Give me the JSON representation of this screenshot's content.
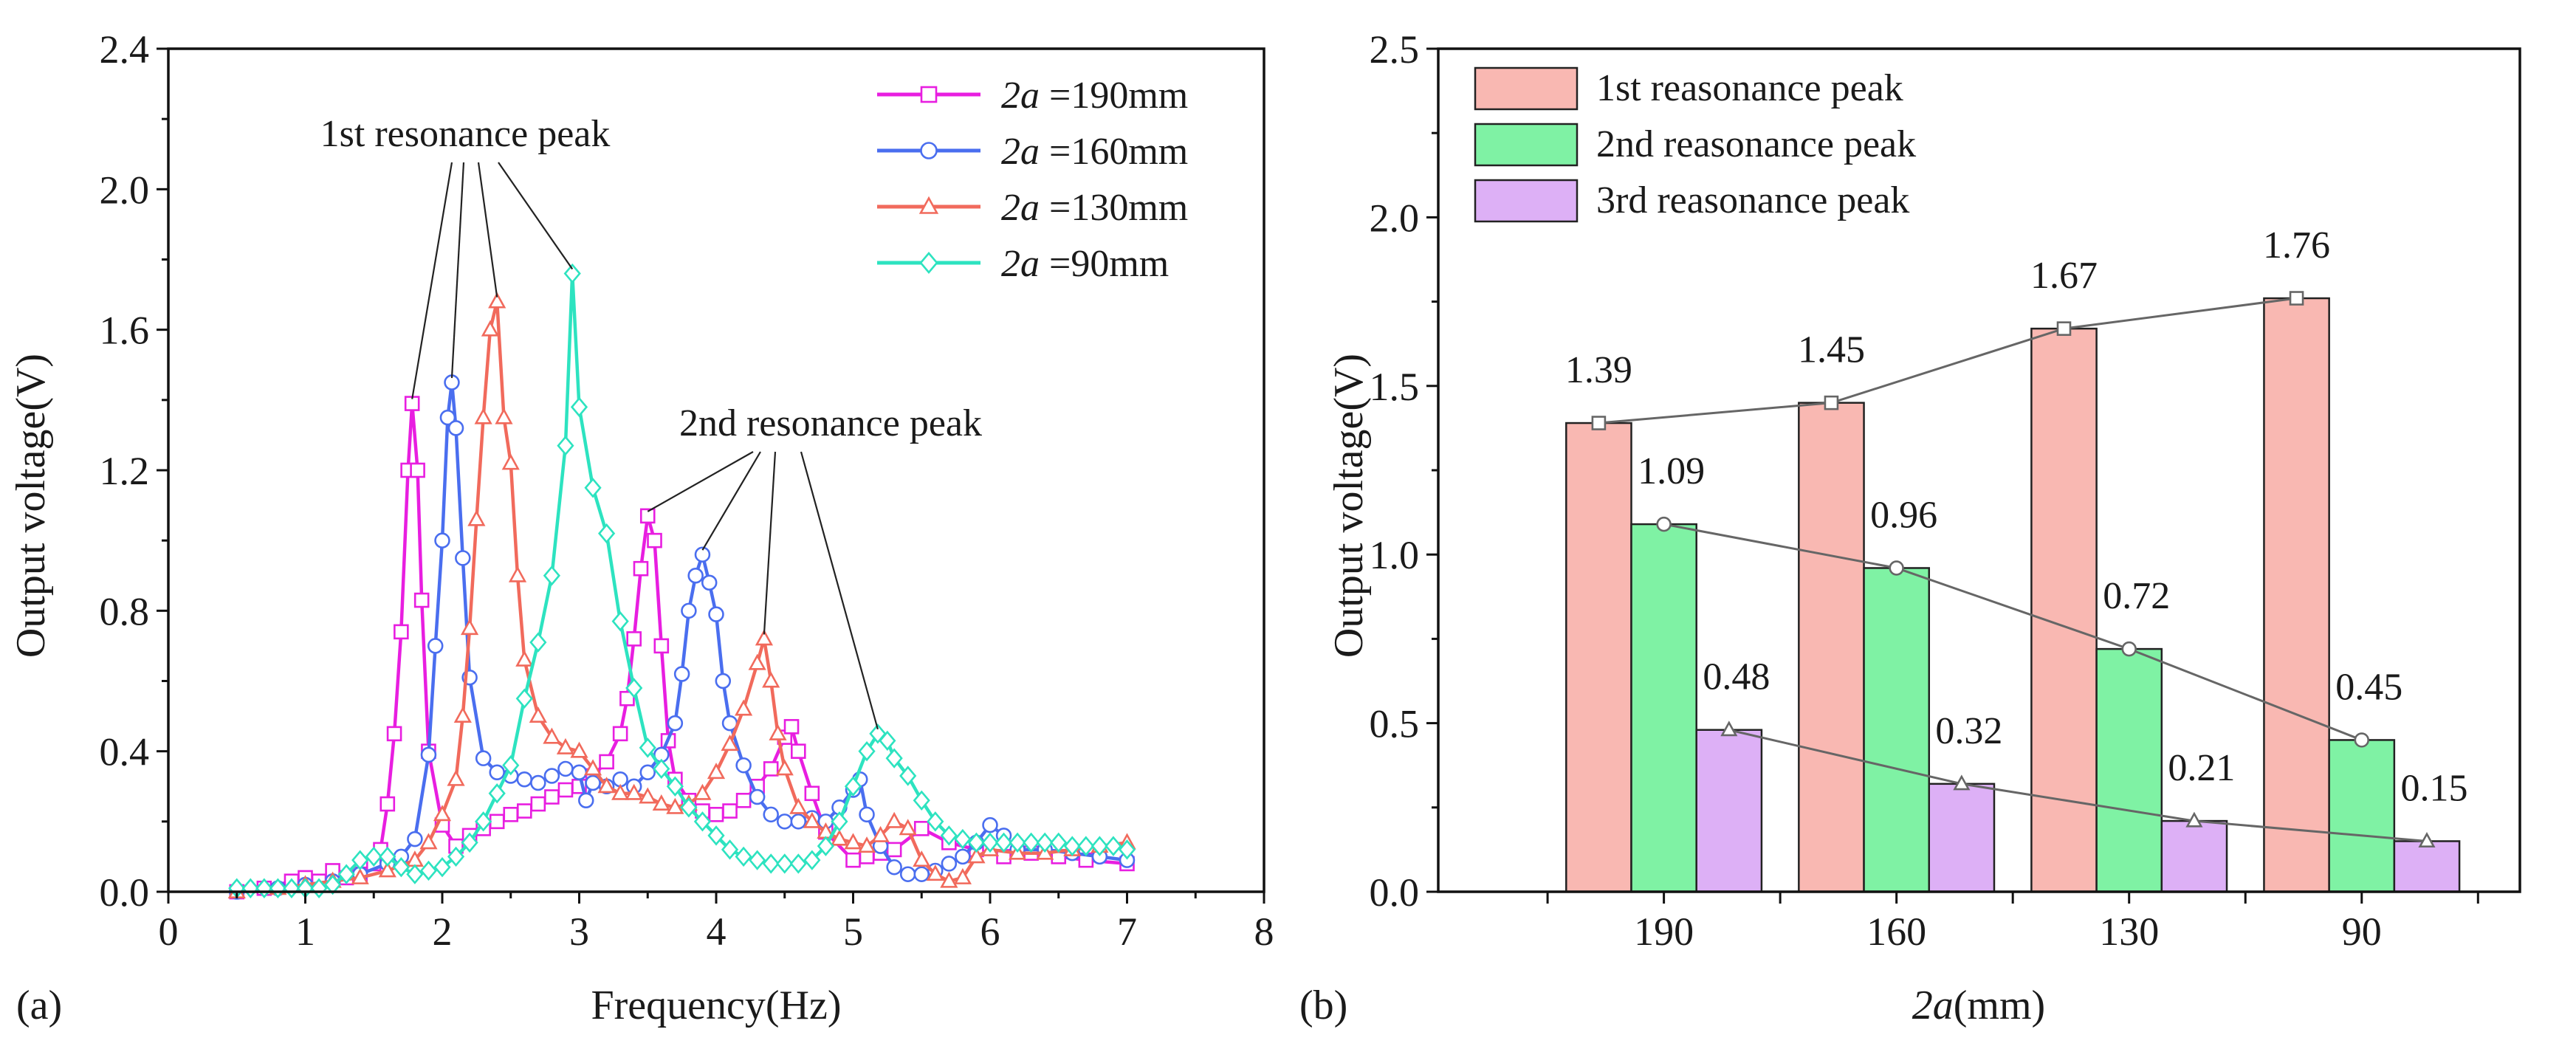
{
  "chart_data": [
    {
      "type": "line",
      "panel_label": "(a)",
      "xlabel": "Frequency(Hz)",
      "ylabel": "Output voltage(V)",
      "xlim": [
        0,
        8
      ],
      "ylim": [
        0,
        2.4
      ],
      "x_ticks": [
        "0",
        "1",
        "2",
        "3",
        "4",
        "5",
        "6",
        "7",
        "8"
      ],
      "y_ticks": [
        "0.0",
        "0.4",
        "0.8",
        "1.2",
        "1.6",
        "2.0",
        "2.4"
      ],
      "legend_position": "top-right",
      "legend_prefix": "2a",
      "annotations": [
        {
          "text": "1st resonance peak",
          "targets": [
            [
              1.78,
              1.39
            ],
            [
              2.07,
              1.45
            ],
            [
              2.4,
              1.68
            ],
            [
              2.95,
              1.76
            ]
          ]
        },
        {
          "text": "2nd resonance peak",
          "targets": [
            [
              3.5,
              1.07
            ],
            [
              3.9,
              0.96
            ],
            [
              4.35,
              0.72
            ],
            [
              5.18,
              0.45
            ]
          ]
        }
      ],
      "series": [
        {
          "name": "=190mm",
          "color": "#e81ee0",
          "marker": "square",
          "x": [
            0.5,
            0.7,
            0.9,
            1.0,
            1.1,
            1.2,
            1.3,
            1.4,
            1.5,
            1.55,
            1.6,
            1.65,
            1.7,
            1.75,
            1.78,
            1.82,
            1.85,
            1.9,
            2.0,
            2.1,
            2.2,
            2.3,
            2.4,
            2.5,
            2.6,
            2.7,
            2.8,
            2.9,
            3.0,
            3.1,
            3.2,
            3.3,
            3.35,
            3.4,
            3.45,
            3.5,
            3.55,
            3.6,
            3.65,
            3.7,
            3.8,
            3.9,
            4.0,
            4.1,
            4.2,
            4.3,
            4.4,
            4.5,
            4.55,
            4.6,
            4.7,
            4.8,
            5.0,
            5.1,
            5.2,
            5.3,
            5.5,
            5.7,
            5.9,
            6.1,
            6.3,
            6.5,
            6.7,
            7.0
          ],
          "y": [
            0.0,
            0.01,
            0.03,
            0.04,
            0.03,
            0.06,
            0.04,
            0.05,
            0.08,
            0.12,
            0.25,
            0.45,
            0.74,
            1.2,
            1.39,
            1.2,
            0.83,
            0.4,
            0.19,
            0.13,
            0.16,
            0.18,
            0.2,
            0.22,
            0.23,
            0.25,
            0.27,
            0.29,
            0.3,
            0.33,
            0.37,
            0.45,
            0.55,
            0.72,
            0.92,
            1.07,
            1.0,
            0.7,
            0.43,
            0.32,
            0.26,
            0.23,
            0.22,
            0.23,
            0.26,
            0.3,
            0.35,
            0.44,
            0.47,
            0.4,
            0.28,
            0.17,
            0.09,
            0.1,
            0.11,
            0.12,
            0.18,
            0.14,
            0.12,
            0.1,
            0.11,
            0.1,
            0.09,
            0.08
          ]
        },
        {
          "name": "=160mm",
          "color": "#4a6eef",
          "marker": "circle",
          "x": [
            0.5,
            0.8,
            1.0,
            1.2,
            1.4,
            1.6,
            1.7,
            1.8,
            1.9,
            1.95,
            2.0,
            2.04,
            2.07,
            2.1,
            2.15,
            2.2,
            2.3,
            2.4,
            2.5,
            2.6,
            2.7,
            2.8,
            2.9,
            3.0,
            3.05,
            3.1,
            3.2,
            3.3,
            3.4,
            3.5,
            3.6,
            3.7,
            3.75,
            3.8,
            3.85,
            3.9,
            3.95,
            4.0,
            4.05,
            4.1,
            4.2,
            4.3,
            4.4,
            4.5,
            4.6,
            4.7,
            4.8,
            4.9,
            5.0,
            5.05,
            5.1,
            5.2,
            5.3,
            5.4,
            5.5,
            5.6,
            5.7,
            5.8,
            5.9,
            6.0,
            6.1,
            6.2,
            6.4,
            6.6,
            6.8,
            7.0
          ],
          "y": [
            0.0,
            0.01,
            0.02,
            0.03,
            0.05,
            0.08,
            0.1,
            0.15,
            0.39,
            0.7,
            1.0,
            1.35,
            1.45,
            1.32,
            0.95,
            0.61,
            0.38,
            0.34,
            0.33,
            0.32,
            0.31,
            0.33,
            0.35,
            0.34,
            0.26,
            0.31,
            0.3,
            0.32,
            0.3,
            0.34,
            0.39,
            0.48,
            0.62,
            0.8,
            0.9,
            0.96,
            0.88,
            0.79,
            0.6,
            0.48,
            0.36,
            0.27,
            0.22,
            0.2,
            0.2,
            0.21,
            0.2,
            0.24,
            0.29,
            0.32,
            0.22,
            0.13,
            0.07,
            0.05,
            0.05,
            0.06,
            0.08,
            0.1,
            0.14,
            0.19,
            0.16,
            0.12,
            0.12,
            0.11,
            0.1,
            0.09
          ]
        },
        {
          "name": "=130mm",
          "color": "#f16a5c",
          "marker": "triangle",
          "x": [
            0.5,
            0.8,
            1.0,
            1.2,
            1.4,
            1.6,
            1.8,
            1.9,
            2.0,
            2.1,
            2.15,
            2.2,
            2.25,
            2.3,
            2.35,
            2.4,
            2.45,
            2.5,
            2.55,
            2.6,
            2.7,
            2.8,
            2.9,
            3.0,
            3.1,
            3.2,
            3.3,
            3.4,
            3.5,
            3.6,
            3.7,
            3.8,
            3.9,
            4.0,
            4.1,
            4.2,
            4.3,
            4.35,
            4.4,
            4.45,
            4.5,
            4.6,
            4.7,
            4.8,
            4.9,
            5.0,
            5.1,
            5.2,
            5.3,
            5.4,
            5.5,
            5.6,
            5.7,
            5.8,
            5.9,
            6.0,
            6.2,
            6.4,
            6.6,
            6.8,
            7.0
          ],
          "y": [
            0.0,
            0.01,
            0.02,
            0.03,
            0.04,
            0.06,
            0.09,
            0.14,
            0.22,
            0.32,
            0.5,
            0.75,
            1.06,
            1.35,
            1.6,
            1.68,
            1.35,
            1.22,
            0.9,
            0.66,
            0.5,
            0.44,
            0.41,
            0.4,
            0.35,
            0.3,
            0.28,
            0.28,
            0.27,
            0.25,
            0.24,
            0.25,
            0.28,
            0.34,
            0.42,
            0.52,
            0.65,
            0.72,
            0.6,
            0.45,
            0.35,
            0.24,
            0.2,
            0.17,
            0.15,
            0.14,
            0.13,
            0.16,
            0.2,
            0.18,
            0.09,
            0.05,
            0.03,
            0.04,
            0.1,
            0.12,
            0.11,
            0.11,
            0.12,
            0.13,
            0.14
          ]
        },
        {
          "name": "=90mm",
          "color": "#2de3c0",
          "marker": "diamond",
          "x": [
            0.5,
            0.6,
            0.7,
            0.8,
            0.9,
            1.0,
            1.1,
            1.2,
            1.3,
            1.4,
            1.5,
            1.6,
            1.7,
            1.8,
            1.9,
            2.0,
            2.1,
            2.2,
            2.3,
            2.4,
            2.5,
            2.6,
            2.7,
            2.8,
            2.9,
            2.95,
            3.0,
            3.1,
            3.2,
            3.3,
            3.4,
            3.5,
            3.6,
            3.7,
            3.8,
            3.9,
            4.0,
            4.1,
            4.2,
            4.3,
            4.4,
            4.5,
            4.6,
            4.7,
            4.8,
            4.9,
            5.0,
            5.1,
            5.18,
            5.25,
            5.3,
            5.4,
            5.5,
            5.6,
            5.7,
            5.8,
            5.9,
            6.0,
            6.1,
            6.2,
            6.3,
            6.4,
            6.5,
            6.6,
            6.7,
            6.8,
            6.9,
            7.0
          ],
          "y": [
            0.01,
            0.01,
            0.01,
            0.01,
            0.01,
            0.01,
            0.01,
            0.02,
            0.05,
            0.09,
            0.1,
            0.1,
            0.07,
            0.05,
            0.06,
            0.07,
            0.1,
            0.14,
            0.2,
            0.28,
            0.36,
            0.55,
            0.71,
            0.9,
            1.27,
            1.76,
            1.38,
            1.15,
            1.02,
            0.77,
            0.58,
            0.41,
            0.35,
            0.3,
            0.24,
            0.2,
            0.16,
            0.12,
            0.1,
            0.09,
            0.08,
            0.08,
            0.08,
            0.09,
            0.13,
            0.2,
            0.3,
            0.4,
            0.45,
            0.43,
            0.38,
            0.33,
            0.26,
            0.2,
            0.16,
            0.15,
            0.14,
            0.14,
            0.14,
            0.14,
            0.14,
            0.14,
            0.14,
            0.13,
            0.13,
            0.13,
            0.13,
            0.12
          ]
        }
      ]
    },
    {
      "type": "bar",
      "panel_label": "(b)",
      "xlabel_italic": "2a",
      "xlabel_rest": "(mm)",
      "ylabel": "Output voltage(V)",
      "ylim": [
        0,
        2.5
      ],
      "y_ticks": [
        "0.0",
        "0.5",
        "1.0",
        "1.5",
        "2.0",
        "2.5"
      ],
      "categories": [
        "190",
        "160",
        "130",
        "90"
      ],
      "legend_position": "top-left",
      "series": [
        {
          "name": "1st reasonance peak",
          "color": "#f9b8b2",
          "marker": "square",
          "values": [
            1.39,
            1.45,
            1.67,
            1.76
          ],
          "labels": [
            "1.39",
            "1.45",
            "1.67",
            "1.76"
          ]
        },
        {
          "name": "2nd reasonance peak",
          "color": "#7ff2a4",
          "marker": "circle",
          "values": [
            1.09,
            0.96,
            0.72,
            0.45
          ],
          "labels": [
            "1.09",
            "0.96",
            "0.72",
            "0.45"
          ]
        },
        {
          "name": "3rd reasonance peak",
          "color": "#ddb0f6",
          "marker": "triangle",
          "values": [
            0.48,
            0.32,
            0.21,
            0.15
          ],
          "labels": [
            "0.48",
            "0.32",
            "0.21",
            "0.15"
          ]
        }
      ]
    }
  ]
}
